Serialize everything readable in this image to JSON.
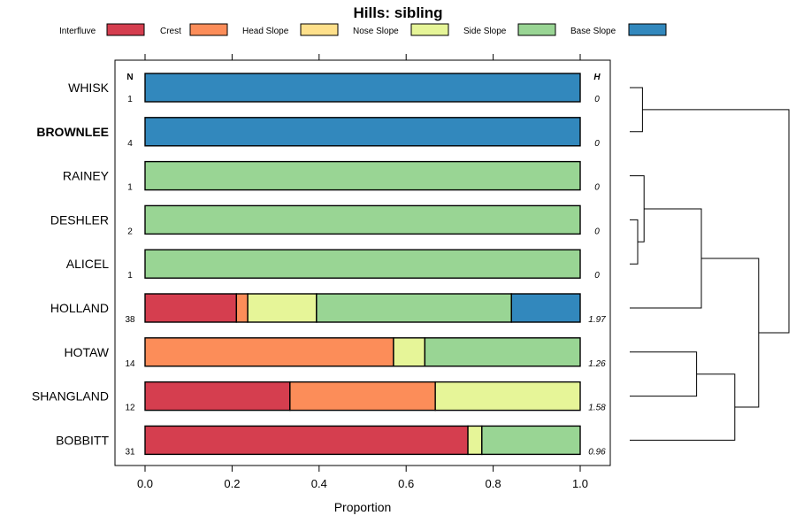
{
  "chart_data": {
    "type": "bar",
    "subtype": "stacked-horizontal-proportion",
    "title": "Hills: sibling",
    "xlabel": "Proportion",
    "ylabel": "",
    "xlim": [
      0,
      1
    ],
    "x_ticks": [
      "0.0",
      "0.2",
      "0.4",
      "0.6",
      "0.8",
      "1.0"
    ],
    "x_tick_values": [
      0,
      0.2,
      0.4,
      0.6,
      0.8,
      1.0
    ],
    "n_header": "N",
    "h_header": "H",
    "legend_position": "top",
    "series": [
      {
        "name": "Interfluve",
        "color": "#d53e4f"
      },
      {
        "name": "Crest",
        "color": "#fc8d59"
      },
      {
        "name": "Head Slope",
        "color": "#fee08b"
      },
      {
        "name": "Nose Slope",
        "color": "#e6f598"
      },
      {
        "name": "Side Slope",
        "color": "#99d594"
      },
      {
        "name": "Base Slope",
        "color": "#3288bd"
      }
    ],
    "rows": [
      {
        "label": "WHISK",
        "bold": false,
        "n": "1",
        "h": "0",
        "values": [
          0,
          0,
          0,
          0,
          0,
          1
        ]
      },
      {
        "label": "BROWNLEE",
        "bold": true,
        "n": "4",
        "h": "0",
        "values": [
          0,
          0,
          0,
          0,
          0,
          1
        ]
      },
      {
        "label": "RAINEY",
        "bold": false,
        "n": "1",
        "h": "0",
        "values": [
          0,
          0,
          0,
          0,
          1,
          0
        ]
      },
      {
        "label": "DESHLER",
        "bold": false,
        "n": "2",
        "h": "0",
        "values": [
          0,
          0,
          0,
          0,
          1,
          0
        ]
      },
      {
        "label": "ALICEL",
        "bold": false,
        "n": "1",
        "h": "0",
        "values": [
          0,
          0,
          0,
          0,
          1,
          0
        ]
      },
      {
        "label": "HOLLAND",
        "bold": false,
        "n": "38",
        "h": "1.97",
        "values": [
          0.21,
          0.026,
          0,
          0.158,
          0.448,
          0.158
        ]
      },
      {
        "label": "HOTAW",
        "bold": false,
        "n": "14",
        "h": "1.26",
        "values": [
          0,
          0.571,
          0,
          0.072,
          0.357,
          0
        ]
      },
      {
        "label": "SHANGLAND",
        "bold": false,
        "n": "12",
        "h": "1.58",
        "values": [
          0.333,
          0.334,
          0,
          0.333,
          0,
          0
        ]
      },
      {
        "label": "BOBBITT",
        "bold": false,
        "n": "31",
        "h": "0.96",
        "values": [
          0.742,
          0,
          0,
          0.032,
          0.226,
          0
        ]
      }
    ],
    "dendrogram": {
      "description": "hierarchical clustering of rows",
      "merges": [
        {
          "left": [
            "DESHLER"
          ],
          "right": [
            "ALICEL"
          ],
          "height": 0.05
        },
        {
          "left": [
            "RAINEY"
          ],
          "right": [
            "DESHLER",
            "ALICEL"
          ],
          "height": 0.09
        },
        {
          "left": [
            "WHISK"
          ],
          "right": [
            "BROWNLEE"
          ],
          "height": 0.08
        },
        {
          "left": [
            "RAINEY",
            "DESHLER",
            "ALICEL"
          ],
          "right": [
            "HOLLAND"
          ],
          "height": 0.45
        },
        {
          "left": [
            "HOTAW"
          ],
          "right": [
            "SHANGLAND"
          ],
          "height": 0.42
        },
        {
          "left": [
            "HOTAW",
            "SHANGLAND"
          ],
          "right": [
            "BOBBITT"
          ],
          "height": 0.66
        },
        {
          "left": [
            "RAINEY",
            "DESHLER",
            "ALICEL",
            "HOLLAND"
          ],
          "right": [
            "HOTAW",
            "SHANGLAND",
            "BOBBITT"
          ],
          "height": 0.81
        },
        {
          "left": [
            "WHISK",
            "BROWNLEE"
          ],
          "right": [
            "RAINEY",
            "DESHLER",
            "ALICEL",
            "HOLLAND",
            "HOTAW",
            "SHANGLAND",
            "BOBBITT"
          ],
          "height": 1.0
        }
      ]
    }
  }
}
